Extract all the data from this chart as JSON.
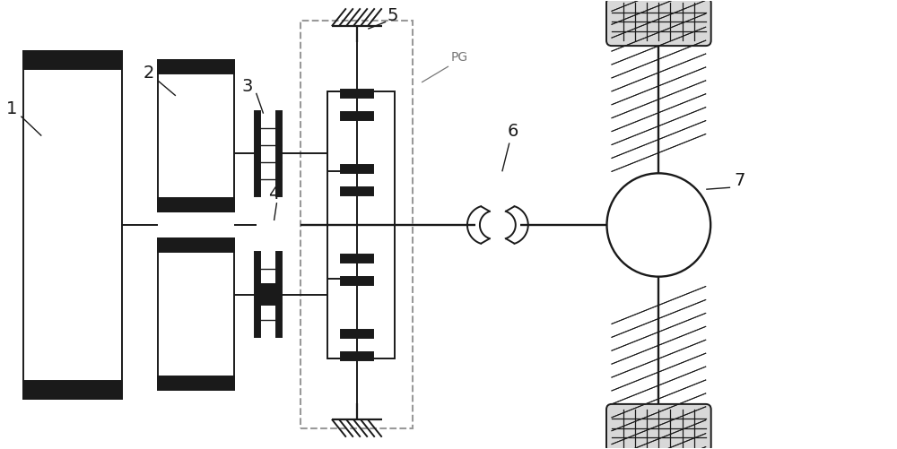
{
  "bg_color": "#ffffff",
  "line_color": "#1a1a1a",
  "dashed_color": "#999999",
  "label_color": "#666666",
  "figsize": [
    10.0,
    5.01
  ],
  "dpi": 100
}
